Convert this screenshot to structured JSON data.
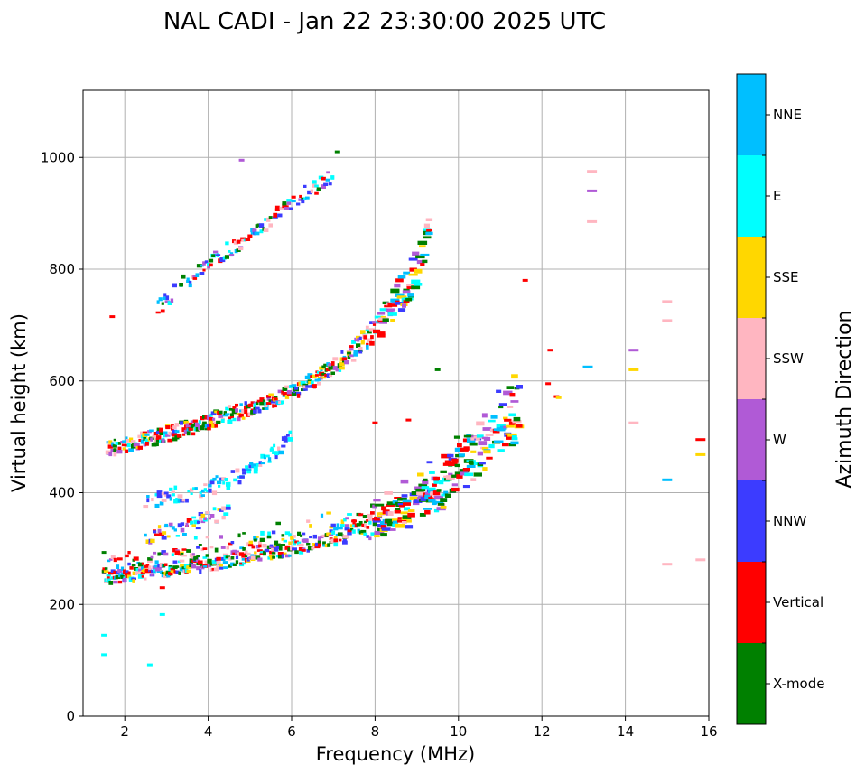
{
  "chart_data": {
    "type": "scatter",
    "title": "NAL CADI - Jan 22 23:30:00 2025 UTC",
    "xlabel": "Frequency (MHz)",
    "ylabel": "Virtual height (km)",
    "xlim": [
      1,
      16
    ],
    "ylim": [
      0,
      1120
    ],
    "xticks": [
      2,
      4,
      6,
      8,
      10,
      12,
      14,
      16
    ],
    "yticks": [
      0,
      200,
      400,
      600,
      800,
      1000
    ],
    "grid": true,
    "colorbar": {
      "title": "Azimuth Direction",
      "position": "right",
      "categories": [
        {
          "label": "X-mode",
          "color": "#008000"
        },
        {
          "label": "Vertical",
          "color": "#ff0000"
        },
        {
          "label": "NNW",
          "color": "#3c3cff"
        },
        {
          "label": "W",
          "color": "#b05ad6"
        },
        {
          "label": "SSW",
          "color": "#ffb6c1"
        },
        {
          "label": "SSE",
          "color": "#ffd700"
        },
        {
          "label": "E",
          "color": "#00ffff"
        },
        {
          "label": "NNE",
          "color": "#00bfff"
        }
      ]
    },
    "traces": [
      {
        "name": "first-hop F trace",
        "points": [
          [
            1.5,
            250
          ],
          [
            2,
            248
          ],
          [
            2.5,
            255
          ],
          [
            3,
            262
          ],
          [
            3.5,
            268
          ],
          [
            4,
            272
          ],
          [
            4.5,
            278
          ],
          [
            5,
            285
          ],
          [
            5.5,
            292
          ],
          [
            6,
            300
          ],
          [
            6.5,
            308
          ],
          [
            7,
            318
          ],
          [
            7.5,
            330
          ],
          [
            8,
            340
          ],
          [
            8.5,
            358
          ],
          [
            9,
            375
          ],
          [
            9.5,
            400
          ],
          [
            10,
            440
          ],
          [
            10.5,
            480
          ],
          [
            11,
            510
          ],
          [
            11.5,
            545
          ]
        ]
      },
      {
        "name": "second-hop trace",
        "points": [
          [
            1.6,
            478
          ],
          [
            2,
            485
          ],
          [
            2.5,
            495
          ],
          [
            3,
            505
          ],
          [
            3.5,
            515
          ],
          [
            4,
            528
          ],
          [
            4.5,
            540
          ],
          [
            5,
            550
          ],
          [
            5.5,
            565
          ],
          [
            6,
            580
          ],
          [
            6.5,
            600
          ],
          [
            7,
            625
          ],
          [
            7.5,
            655
          ],
          [
            8,
            690
          ],
          [
            8.5,
            740
          ],
          [
            9,
            800
          ],
          [
            9.3,
            870
          ]
        ]
      },
      {
        "name": "third-hop trace",
        "points": [
          [
            2.8,
            730
          ],
          [
            3,
            745
          ],
          [
            3.5,
            780
          ],
          [
            4,
            810
          ],
          [
            4.5,
            835
          ],
          [
            5,
            860
          ],
          [
            5.5,
            890
          ],
          [
            6,
            920
          ],
          [
            6.5,
            945
          ],
          [
            7,
            965
          ]
        ]
      },
      {
        "name": "oblique E trace",
        "points": [
          [
            2.5,
            385
          ],
          [
            3,
            392
          ],
          [
            3.5,
            400
          ],
          [
            4,
            410
          ],
          [
            4.5,
            422
          ],
          [
            5,
            440
          ],
          [
            5.5,
            465
          ],
          [
            6,
            500
          ]
        ]
      },
      {
        "name": "oblique scatter trace",
        "points": [
          [
            2.5,
            320
          ],
          [
            3,
            330
          ],
          [
            3.5,
            340
          ],
          [
            4,
            355
          ],
          [
            4.5,
            365
          ]
        ]
      }
    ],
    "isolated_points": [
      {
        "x": 1.5,
        "y": 145,
        "dir": "E"
      },
      {
        "x": 1.5,
        "y": 110,
        "dir": "E"
      },
      {
        "x": 2.6,
        "y": 92,
        "dir": "E"
      },
      {
        "x": 2.9,
        "y": 182,
        "dir": "E"
      },
      {
        "x": 2.9,
        "y": 230,
        "dir": "Vertical"
      },
      {
        "x": 1.7,
        "y": 715,
        "dir": "Vertical"
      },
      {
        "x": 4.8,
        "y": 995,
        "dir": "W"
      },
      {
        "x": 7.1,
        "y": 1010,
        "dir": "X-mode"
      },
      {
        "x": 9.5,
        "y": 620,
        "dir": "X-mode"
      },
      {
        "x": 8.8,
        "y": 530,
        "dir": "Vertical"
      },
      {
        "x": 8.0,
        "y": 525,
        "dir": "Vertical"
      },
      {
        "x": 12.2,
        "y": 655,
        "dir": "Vertical"
      },
      {
        "x": 12.15,
        "y": 595,
        "dir": "Vertical"
      },
      {
        "x": 12.35,
        "y": 572,
        "dir": "Vertical"
      },
      {
        "x": 12.4,
        "y": 570,
        "dir": "SSE"
      },
      {
        "x": 11.6,
        "y": 780,
        "dir": "Vertical"
      },
      {
        "x": 13.2,
        "y": 975,
        "dir": "SSW"
      },
      {
        "x": 13.2,
        "y": 940,
        "dir": "W"
      },
      {
        "x": 13.2,
        "y": 885,
        "dir": "SSW"
      },
      {
        "x": 13.1,
        "y": 625,
        "dir": "NNE"
      },
      {
        "x": 14.2,
        "y": 655,
        "dir": "W"
      },
      {
        "x": 14.2,
        "y": 620,
        "dir": "SSE"
      },
      {
        "x": 14.2,
        "y": 525,
        "dir": "SSW"
      },
      {
        "x": 15.0,
        "y": 742,
        "dir": "SSW"
      },
      {
        "x": 15.0,
        "y": 708,
        "dir": "SSW"
      },
      {
        "x": 15.0,
        "y": 423,
        "dir": "NNE"
      },
      {
        "x": 15.0,
        "y": 272,
        "dir": "SSW"
      },
      {
        "x": 15.8,
        "y": 495,
        "dir": "Vertical"
      },
      {
        "x": 15.8,
        "y": 468,
        "dir": "SSE"
      },
      {
        "x": 15.8,
        "y": 280,
        "dir": "SSW"
      }
    ]
  }
}
